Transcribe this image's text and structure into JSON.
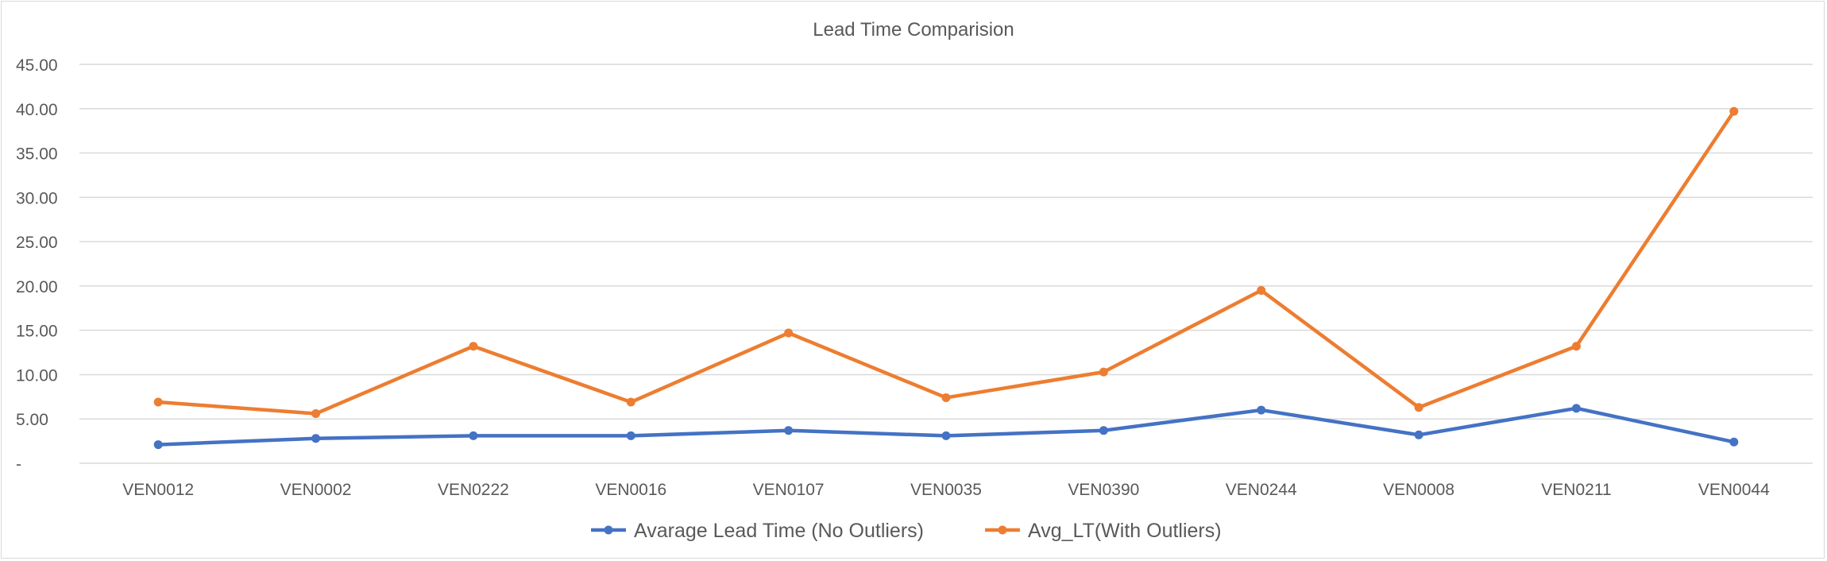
{
  "chart_data": {
    "type": "line",
    "title": "Lead Time Comparision",
    "xlabel": "",
    "ylabel": "",
    "categories": [
      "VEN0012",
      "VEN0002",
      "VEN0222",
      "VEN0016",
      "VEN0107",
      "VEN0035",
      "VEN0390",
      "VEN0244",
      "VEN0008",
      "VEN0211",
      "VEN0044"
    ],
    "ylim": [
      0,
      45
    ],
    "yticks": [
      "-",
      "5.00",
      "10.00",
      "15.00",
      "20.00",
      "25.00",
      "30.00",
      "35.00",
      "40.00",
      "45.00"
    ],
    "grid": true,
    "legend_position": "bottom",
    "series": [
      {
        "name": "Avarage Lead Time (No Outliers)",
        "color": "#4472c4",
        "values": [
          2.1,
          2.8,
          3.1,
          3.1,
          3.7,
          3.1,
          3.7,
          6.0,
          3.2,
          6.2,
          2.4
        ]
      },
      {
        "name": "Avg_LT(With Outliers)",
        "color": "#ed7d31",
        "values": [
          6.9,
          5.6,
          13.2,
          6.9,
          14.7,
          7.4,
          10.3,
          19.5,
          6.3,
          13.2,
          39.7
        ]
      }
    ]
  }
}
